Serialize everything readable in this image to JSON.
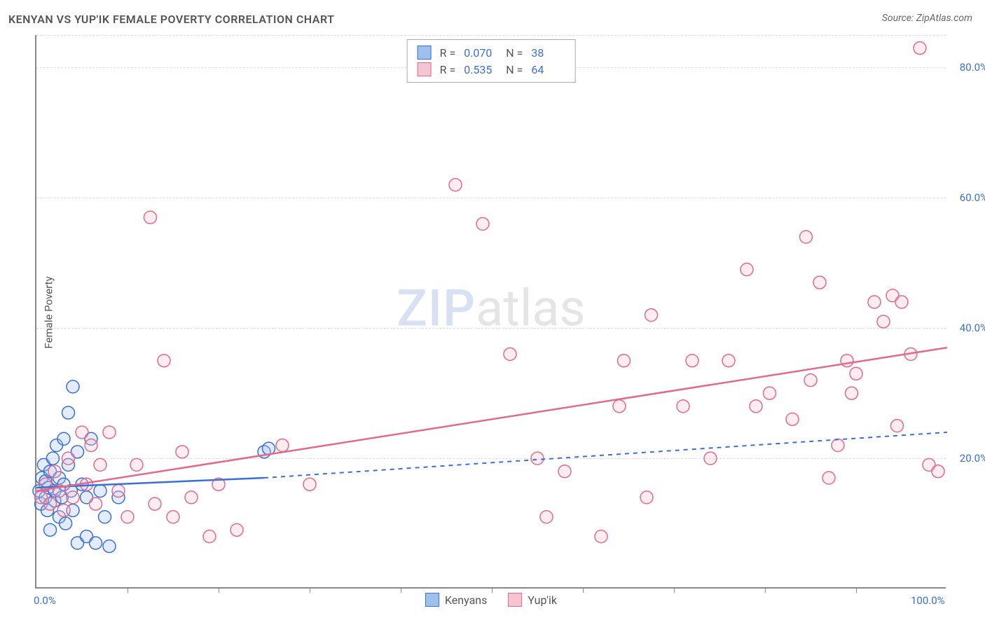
{
  "title": "KENYAN VS YUP'IK FEMALE POVERTY CORRELATION CHART",
  "source": "Source: ZipAtlas.com",
  "ylabel": "Female Poverty",
  "watermark": {
    "zip": "ZIP",
    "atlas": "atlas"
  },
  "chart": {
    "type": "scatter",
    "xlim": [
      0,
      100
    ],
    "ylim": [
      0,
      85
    ],
    "yticks": [
      {
        "value": 20,
        "label": "20.0%"
      },
      {
        "value": 40,
        "label": "40.0%"
      },
      {
        "value": 60,
        "label": "60.0%"
      },
      {
        "value": 80,
        "label": "80.0%"
      }
    ],
    "xticks_major": [
      {
        "value": 0,
        "label": "0.0%"
      },
      {
        "value": 100,
        "label": "100.0%"
      }
    ],
    "xticks_minor": [
      10,
      20,
      30,
      40,
      50,
      60,
      70,
      80,
      90
    ],
    "gridlines_y": [
      20,
      40,
      60,
      80,
      85
    ],
    "background_color": "#ffffff",
    "grid_color": "#dddddd",
    "axis_color": "#888888",
    "tick_label_color": "#3b6fd6",
    "marker_radius": 9,
    "marker_stroke_width": 1.5,
    "marker_fill_opacity": 0.3,
    "line_width_solid": 2.5,
    "line_width_dash": 2,
    "dash_pattern": "6,6"
  },
  "series": {
    "kenyans": {
      "label": "Kenyans",
      "color_stroke": "#3b6fd6",
      "color_fill": "#9ec0ef",
      "R": "0.070",
      "N": "38",
      "trend": {
        "x1": 0,
        "y1": 15.5,
        "x2": 25,
        "y2": 17.0,
        "solid": true,
        "extend": {
          "x1": 25,
          "y1": 17.0,
          "x2": 100,
          "y2": 24.0
        }
      },
      "points": [
        [
          0.3,
          15
        ],
        [
          0.5,
          13
        ],
        [
          0.6,
          17
        ],
        [
          0.8,
          19
        ],
        [
          1.0,
          14
        ],
        [
          1.0,
          16.5
        ],
        [
          1.2,
          12
        ],
        [
          1.3,
          15.5
        ],
        [
          1.5,
          18
        ],
        [
          1.5,
          9
        ],
        [
          1.8,
          20
        ],
        [
          2.0,
          13.5
        ],
        [
          2.0,
          15
        ],
        [
          2.2,
          22
        ],
        [
          2.5,
          17
        ],
        [
          2.5,
          11
        ],
        [
          2.8,
          14
        ],
        [
          3.0,
          23
        ],
        [
          3.0,
          16
        ],
        [
          3.2,
          10
        ],
        [
          3.5,
          19
        ],
        [
          3.5,
          27
        ],
        [
          3.8,
          15
        ],
        [
          4.0,
          31
        ],
        [
          4.0,
          12
        ],
        [
          4.5,
          21
        ],
        [
          4.5,
          7
        ],
        [
          5.0,
          16
        ],
        [
          5.5,
          8
        ],
        [
          5.5,
          14
        ],
        [
          6.0,
          23
        ],
        [
          6.5,
          7
        ],
        [
          7.0,
          15
        ],
        [
          7.5,
          11
        ],
        [
          8.0,
          6.5
        ],
        [
          9.0,
          14
        ],
        [
          25.0,
          21
        ],
        [
          25.5,
          21.5
        ]
      ]
    },
    "yupik": {
      "label": "Yup'ik",
      "color_stroke": "#e26a8a",
      "color_fill": "#f7c4d2",
      "R": "0.535",
      "N": "64",
      "trend": {
        "x1": 0,
        "y1": 15.0,
        "x2": 100,
        "y2": 37.0,
        "solid": true
      },
      "points": [
        [
          0.5,
          14
        ],
        [
          1.0,
          16
        ],
        [
          1.5,
          13
        ],
        [
          2.0,
          18
        ],
        [
          2.5,
          15
        ],
        [
          3.0,
          12
        ],
        [
          3.5,
          20
        ],
        [
          4.0,
          14
        ],
        [
          5.0,
          24
        ],
        [
          5.5,
          16
        ],
        [
          6.0,
          22
        ],
        [
          6.5,
          13
        ],
        [
          7.0,
          19
        ],
        [
          8.0,
          24
        ],
        [
          9.0,
          15
        ],
        [
          10.0,
          11
        ],
        [
          11.0,
          19
        ],
        [
          12.5,
          57
        ],
        [
          13.0,
          13
        ],
        [
          14.0,
          35
        ],
        [
          15.0,
          11
        ],
        [
          16.0,
          21
        ],
        [
          17.0,
          14
        ],
        [
          19.0,
          8
        ],
        [
          20.0,
          16
        ],
        [
          22.0,
          9
        ],
        [
          27.0,
          22
        ],
        [
          30.0,
          16
        ],
        [
          46.0,
          62
        ],
        [
          49.0,
          56
        ],
        [
          52.0,
          36
        ],
        [
          55.0,
          20
        ],
        [
          56.0,
          11
        ],
        [
          58.0,
          18
        ],
        [
          62.0,
          8
        ],
        [
          64.0,
          28
        ],
        [
          64.5,
          35
        ],
        [
          67.0,
          14
        ],
        [
          67.5,
          42
        ],
        [
          71.0,
          28
        ],
        [
          72.0,
          35
        ],
        [
          74.0,
          20
        ],
        [
          76.0,
          35
        ],
        [
          78.0,
          49
        ],
        [
          79.0,
          28
        ],
        [
          80.5,
          30
        ],
        [
          83.0,
          26
        ],
        [
          84.5,
          54
        ],
        [
          85.0,
          32
        ],
        [
          86.0,
          47
        ],
        [
          87.0,
          17
        ],
        [
          88.0,
          22
        ],
        [
          89.0,
          35
        ],
        [
          89.5,
          30
        ],
        [
          90.0,
          33
        ],
        [
          92.0,
          44
        ],
        [
          93.0,
          41
        ],
        [
          94.0,
          45
        ],
        [
          95.0,
          44
        ],
        [
          97.0,
          83
        ],
        [
          98.0,
          19
        ],
        [
          94.5,
          25
        ],
        [
          96.0,
          36
        ],
        [
          99.0,
          18
        ]
      ]
    }
  },
  "legend_top": {
    "rows": [
      {
        "series": "kenyans"
      },
      {
        "series": "yupik"
      }
    ],
    "R_label": "R =",
    "N_label": "N ="
  },
  "legend_bottom": [
    {
      "series": "kenyans"
    },
    {
      "series": "yupik"
    }
  ]
}
